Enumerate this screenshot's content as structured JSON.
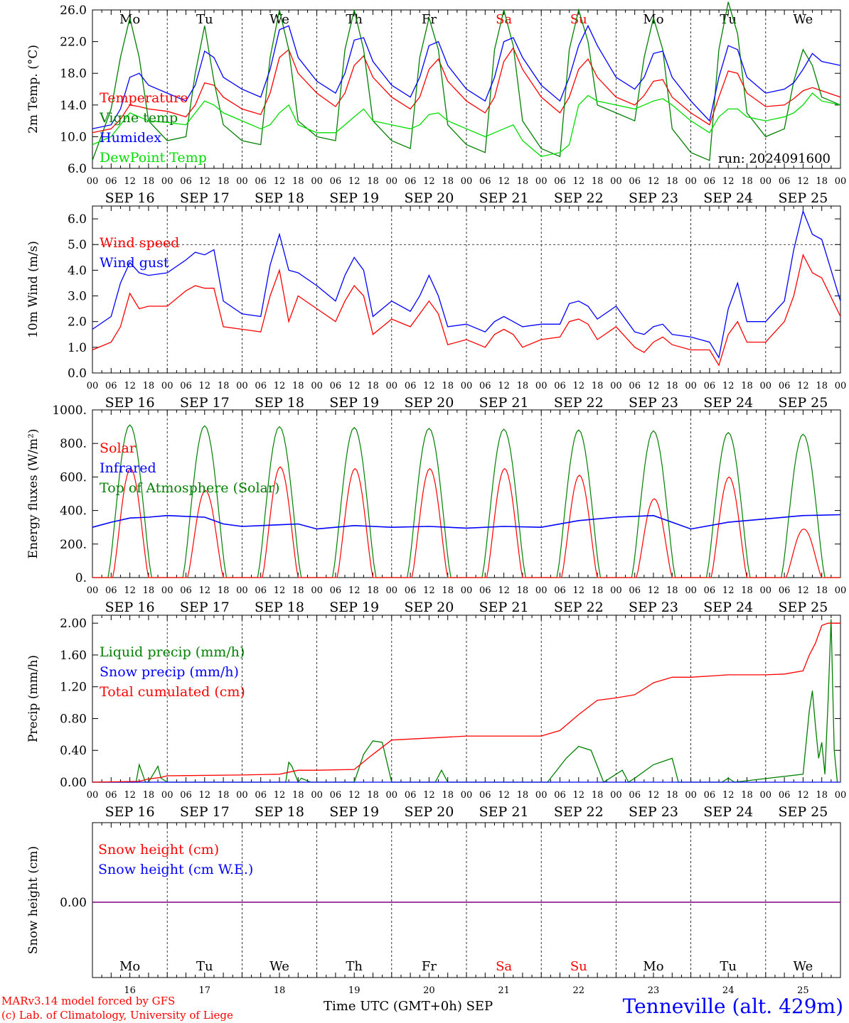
{
  "footer": {
    "credit_line1": "MARv3.14 model forced by GFS",
    "credit_line2": "(c) Lab. of Climatology, University of Liege",
    "x_title": "Time UTC (GMT+0h) SEP",
    "station": "Tenneville (alt. 429m)"
  },
  "colors": {
    "red": "#ff0000",
    "green": "#008000",
    "lightgreen": "#00dd00",
    "blue": "#0000ff",
    "purple": "#800080",
    "sat_sun": "#ff0000"
  },
  "chart_data": [
    {
      "id": "temp",
      "type": "line",
      "ylabel": "2m Temp. (°C)",
      "ylim": [
        6,
        26
      ],
      "yticks": [
        "6.0",
        "10.0",
        "14.0",
        "18.0",
        "22.0",
        "26.0"
      ],
      "tick_values": [
        6,
        10,
        14,
        18,
        22,
        26
      ],
      "weekday_labels": [
        "Mo",
        "Tu",
        "We",
        "Th",
        "Fr",
        "Sa",
        "Su",
        "Mo",
        "Tu",
        "We"
      ],
      "annotation": "run: 2024091600",
      "x_hours": [
        0,
        6,
        9,
        12,
        15,
        18,
        24,
        30,
        33,
        36,
        39,
        42,
        48,
        54,
        57,
        60,
        63,
        66,
        72,
        78,
        81,
        84,
        87,
        90,
        96,
        102,
        105,
        108,
        111,
        114,
        120,
        126,
        129,
        132,
        135,
        138,
        144,
        150,
        153,
        156,
        159,
        162,
        168,
        174,
        177,
        180,
        183,
        186,
        192,
        198,
        201,
        204,
        207,
        210,
        216,
        222,
        225,
        228,
        231,
        234,
        240
      ],
      "series": [
        {
          "name": "Temperature",
          "color": "#ff0000",
          "values": [
            10.5,
            11.0,
            12.2,
            14.0,
            13.8,
            13.5,
            13.2,
            12.5,
            14.0,
            16.8,
            16.5,
            15.0,
            13.5,
            12.8,
            15.5,
            20.0,
            21.0,
            18.0,
            15.5,
            13.8,
            15.5,
            19.0,
            20.2,
            17.5,
            15.0,
            13.5,
            15.0,
            18.5,
            19.8,
            17.0,
            14.5,
            13.0,
            15.0,
            19.5,
            21.2,
            18.5,
            15.0,
            13.0,
            15.0,
            18.5,
            19.8,
            17.5,
            15.0,
            14.0,
            15.2,
            17.0,
            17.2,
            15.0,
            13.0,
            11.5,
            15.0,
            18.3,
            18.0,
            15.5,
            13.8,
            14.0,
            14.8,
            15.8,
            16.2,
            15.8,
            15.0
          ]
        },
        {
          "name": "Vigne temp",
          "color": "#008000",
          "values": [
            7.0,
            13.5,
            20.0,
            25.0,
            20.0,
            12.0,
            9.5,
            10.0,
            18.0,
            24.0,
            17.0,
            11.5,
            9.5,
            9.0,
            20.0,
            26.0,
            21.0,
            12.0,
            10.0,
            9.5,
            21.0,
            26.0,
            21.0,
            12.0,
            9.5,
            8.5,
            20.0,
            25.0,
            21.0,
            11.5,
            9.0,
            8.0,
            21.0,
            26.0,
            21.5,
            12.0,
            8.5,
            7.5,
            21.0,
            26.0,
            22.0,
            14.0,
            13.0,
            12.0,
            20.0,
            25.0,
            21.0,
            11.0,
            8.0,
            7.0,
            21.0,
            27.0,
            23.0,
            13.0,
            10.0,
            11.0,
            17.0,
            21.0,
            19.0,
            15.0,
            14.0
          ]
        },
        {
          "name": "Humidex",
          "color": "#0000ff",
          "values": [
            11.0,
            11.5,
            13.5,
            17.5,
            18.0,
            16.5,
            15.5,
            14.5,
            16.5,
            20.8,
            20.0,
            17.5,
            16.0,
            15.0,
            18.5,
            23.5,
            24.0,
            20.0,
            17.0,
            15.5,
            18.0,
            22.2,
            22.5,
            19.5,
            16.5,
            15.0,
            17.5,
            21.5,
            22.0,
            19.0,
            16.0,
            14.5,
            17.5,
            22.0,
            22.5,
            20.0,
            16.5,
            14.5,
            17.5,
            21.5,
            24.0,
            21.5,
            17.5,
            16.0,
            17.5,
            20.5,
            20.8,
            17.5,
            14.5,
            12.0,
            17.5,
            21.5,
            21.0,
            17.5,
            15.5,
            16.0,
            16.8,
            18.5,
            20.5,
            19.5,
            19.0
          ]
        },
        {
          "name": "DewPoint Temp",
          "color": "#00dd00",
          "values": [
            9.0,
            10.0,
            11.5,
            13.0,
            12.5,
            12.0,
            11.8,
            11.5,
            13.0,
            14.5,
            14.0,
            13.0,
            12.0,
            11.0,
            11.5,
            13.0,
            14.0,
            11.5,
            10.5,
            10.5,
            11.5,
            12.5,
            13.5,
            12.0,
            11.5,
            11.0,
            11.5,
            12.8,
            13.0,
            12.0,
            11.0,
            10.0,
            10.5,
            11.0,
            11.5,
            9.5,
            7.5,
            8.0,
            9.0,
            14.0,
            15.2,
            14.5,
            14.0,
            13.5,
            14.0,
            14.5,
            14.8,
            14.0,
            12.0,
            10.5,
            12.5,
            13.5,
            13.5,
            12.5,
            12.0,
            12.5,
            13.0,
            14.0,
            15.5,
            14.5,
            14.0
          ]
        }
      ]
    },
    {
      "id": "wind",
      "type": "line",
      "ylabel": "10m Wind (m/s)",
      "ylim": [
        0,
        6.5
      ],
      "yticks": [
        "0.0",
        "1.0",
        "2.0",
        "3.0",
        "4.0",
        "5.0",
        "6.0"
      ],
      "tick_values": [
        0,
        1,
        2,
        3,
        4,
        5,
        6
      ],
      "dashed_reference": 5.0,
      "x_hours": [
        0,
        6,
        9,
        12,
        15,
        18,
        24,
        30,
        33,
        36,
        39,
        42,
        48,
        54,
        57,
        60,
        63,
        66,
        72,
        78,
        81,
        84,
        87,
        90,
        96,
        102,
        105,
        108,
        111,
        114,
        120,
        126,
        129,
        132,
        135,
        138,
        144,
        150,
        153,
        156,
        159,
        162,
        168,
        174,
        177,
        180,
        183,
        186,
        192,
        198,
        201,
        204,
        207,
        210,
        216,
        222,
        225,
        228,
        231,
        234,
        240
      ],
      "series": [
        {
          "name": "Wind speed",
          "color": "#ff0000",
          "values": [
            0.9,
            1.2,
            1.8,
            3.1,
            2.5,
            2.6,
            2.6,
            3.2,
            3.4,
            3.3,
            3.3,
            1.8,
            1.7,
            1.6,
            3.0,
            4.0,
            2.0,
            3.0,
            2.5,
            2.0,
            2.8,
            3.4,
            3.0,
            1.5,
            2.1,
            1.8,
            2.3,
            2.8,
            2.3,
            1.1,
            1.3,
            1.0,
            1.5,
            1.7,
            1.5,
            1.0,
            1.3,
            1.4,
            2.0,
            2.1,
            1.9,
            1.3,
            1.8,
            1.0,
            0.8,
            1.2,
            1.4,
            1.1,
            0.9,
            0.9,
            0.3,
            1.5,
            2.0,
            1.2,
            1.2,
            2.0,
            3.0,
            4.6,
            3.9,
            3.7,
            2.2
          ]
        },
        {
          "name": "Wind gust",
          "color": "#0000ff",
          "values": [
            1.7,
            2.2,
            3.5,
            4.3,
            3.9,
            3.8,
            3.9,
            4.4,
            4.7,
            4.6,
            4.8,
            2.8,
            2.3,
            2.2,
            4.2,
            5.4,
            4.0,
            3.9,
            3.4,
            2.8,
            3.8,
            4.5,
            4.0,
            2.2,
            2.8,
            2.4,
            3.0,
            3.8,
            3.0,
            1.8,
            1.9,
            1.6,
            2.0,
            2.2,
            2.0,
            1.8,
            1.9,
            1.9,
            2.7,
            2.8,
            2.6,
            2.1,
            2.6,
            1.6,
            1.5,
            1.8,
            1.9,
            1.5,
            1.4,
            1.2,
            0.6,
            2.5,
            3.5,
            2.0,
            2.0,
            2.8,
            4.8,
            6.3,
            5.4,
            5.2,
            2.8
          ]
        }
      ]
    },
    {
      "id": "energy",
      "type": "line",
      "ylabel": "Energy fluxes (W/m²)",
      "ylim": [
        0,
        1000
      ],
      "yticks": [
        "0.",
        "200.",
        "400.",
        "600.",
        "800.",
        "1000."
      ],
      "tick_values": [
        0,
        200,
        400,
        600,
        800,
        1000
      ],
      "day_peaks": {
        "solar": [
          650,
          520,
          660,
          650,
          650,
          650,
          610,
          470,
          600,
          290
        ],
        "toa": [
          910,
          905,
          900,
          895,
          890,
          885,
          880,
          875,
          865,
          855
        ]
      },
      "infrared": {
        "name": "Infrared",
        "color": "#0000ff",
        "x_hours": [
          0,
          6,
          12,
          18,
          24,
          36,
          42,
          48,
          60,
          66,
          72,
          84,
          96,
          108,
          120,
          132,
          144,
          156,
          168,
          180,
          192,
          204,
          216,
          228,
          240
        ],
        "values": [
          300,
          330,
          355,
          360,
          370,
          360,
          320,
          305,
          315,
          320,
          290,
          310,
          300,
          305,
          295,
          305,
          300,
          340,
          360,
          370,
          290,
          330,
          350,
          370,
          375
        ]
      },
      "series_names": [
        {
          "name": "Solar",
          "color": "#ff0000"
        },
        {
          "name": "Top of Atmosphere (Solar)",
          "color": "#008000"
        }
      ]
    },
    {
      "id": "precip",
      "type": "line",
      "ylabel": "Precip (mm/h)",
      "ylim": [
        0,
        2.1
      ],
      "yticks": [
        "0.00",
        "0.40",
        "0.80",
        "1.20",
        "1.60",
        "2.00"
      ],
      "tick_values": [
        0,
        0.4,
        0.8,
        1.2,
        1.6,
        2.0
      ],
      "series": [
        {
          "name": "Liquid precip (mm/h)",
          "color": "#008000",
          "x_hours": [
            0,
            14,
            15,
            17,
            18,
            21,
            22,
            24,
            26,
            48,
            62,
            63,
            64,
            66,
            67,
            70,
            84,
            87,
            90,
            93,
            96,
            100,
            110,
            112,
            114,
            122,
            146,
            152,
            156,
            160,
            162,
            164,
            170,
            172,
            174,
            180,
            186,
            188,
            192,
            202,
            204,
            206,
            228,
            230,
            231,
            232,
            233,
            234,
            235,
            236,
            237,
            238,
            239
          ],
          "values": [
            0,
            0,
            0.22,
            0,
            0,
            0.2,
            0.05,
            0,
            0,
            0,
            0,
            0.25,
            0.2,
            0,
            0.05,
            0,
            0,
            0.35,
            0.52,
            0.5,
            0,
            0,
            0,
            0.15,
            0,
            0,
            0,
            0.3,
            0.45,
            0.4,
            0.2,
            0,
            0.15,
            0,
            0.05,
            0.22,
            0.3,
            0,
            0,
            0,
            0.05,
            0,
            0.1,
            0.9,
            1.15,
            0.7,
            0.3,
            0.5,
            0.1,
            1.0,
            2.05,
            0.4,
            0
          ]
        },
        {
          "name": "Snow precip (mm/h)",
          "color": "#0000ff",
          "x_hours": [
            0,
            240
          ],
          "values": [
            0,
            0
          ]
        },
        {
          "name": "Total cumulated (cm)",
          "color": "#ff0000",
          "x_hours": [
            0,
            15,
            18,
            22,
            24,
            48,
            60,
            66,
            72,
            84,
            90,
            96,
            120,
            144,
            150,
            156,
            162,
            168,
            174,
            180,
            186,
            192,
            204,
            216,
            222,
            228,
            230,
            232,
            234,
            236,
            240
          ],
          "values": [
            0,
            0.01,
            0.04,
            0.06,
            0.08,
            0.09,
            0.1,
            0.15,
            0.15,
            0.16,
            0.35,
            0.53,
            0.58,
            0.58,
            0.65,
            0.85,
            1.03,
            1.06,
            1.1,
            1.25,
            1.32,
            1.32,
            1.35,
            1.35,
            1.36,
            1.4,
            1.6,
            1.75,
            1.97,
            2.0,
            2.0
          ]
        }
      ]
    },
    {
      "id": "snow",
      "type": "line",
      "ylabel": "Snow height (cm)",
      "yticks": [
        "0.00"
      ],
      "series": [
        {
          "name": "Snow height (cm)",
          "color": "#ff0000",
          "x_hours": [
            0,
            240
          ],
          "values": [
            0,
            0
          ]
        },
        {
          "name": "Snow height (cm W.E.)",
          "color": "#0000ff",
          "x_hours": [
            0,
            240
          ],
          "values": [
            0,
            0
          ]
        }
      ]
    }
  ],
  "axis": {
    "hour_labels": [
      "00",
      "06",
      "12",
      "18"
    ],
    "date_labels": [
      "SEP 16",
      "SEP 17",
      "SEP 18",
      "SEP 19",
      "SEP 20",
      "SEP 21",
      "SEP 22",
      "SEP 23",
      "SEP 24",
      "SEP 25"
    ],
    "day_numbers": [
      "16",
      "17",
      "18",
      "19",
      "20",
      "21",
      "22",
      "23",
      "24",
      "25"
    ],
    "weekday_labels": [
      "Mo",
      "Tu",
      "We",
      "Th",
      "Fr",
      "Sa",
      "Su",
      "Mo",
      "Tu",
      "We"
    ],
    "weekend_indices": [
      5,
      6
    ]
  }
}
